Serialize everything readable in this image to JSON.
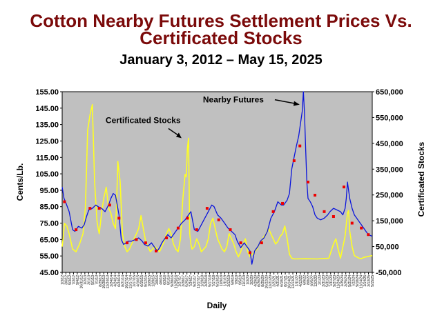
{
  "title_line1": "Cotton Nearby Futures Settlement Prices Vs.",
  "title_line2": "Certificated Stocks",
  "subtitle": "January 3, 2012 – May 15, 2025",
  "colors": {
    "plot_bg": "#c0c0c0",
    "futures": "#0a14dc",
    "stocks": "#ffff22",
    "settle_marker": "#ee0000",
    "title": "#7b0a0a"
  },
  "chart_data": {
    "type": "line",
    "xlabel": "Daily",
    "ylabel_left": "Cents/Lb.",
    "ylabel_right": "Certificated Stocks",
    "ylim_left": [
      45,
      155
    ],
    "ylim_right": [
      -50000,
      650000
    ],
    "left_ticks": [
      "45.00",
      "55.00",
      "65.00",
      "75.00",
      "85.00",
      "95.00",
      "105.00",
      "115.00",
      "125.00",
      "135.00",
      "145.00",
      "155.00"
    ],
    "right_ticks": [
      "-50,000",
      "50,000",
      "150,000",
      "250,000",
      "350,000",
      "450,000",
      "550,000",
      "650,000"
    ],
    "right_tick_values": [
      -50000,
      50000,
      150000,
      250000,
      350000,
      450000,
      550000,
      650000
    ],
    "x_ticks": [
      "1/3/12",
      "3/6/12",
      "5/3/12",
      "7/3/12",
      "9/4/12",
      "10/31/12",
      "1/2/13",
      "3/1/13",
      "5/1/13",
      "7/1/13",
      "8/29/13",
      "10/28/13",
      "12/24/13",
      "2/24/14",
      "4/24/14",
      "6/24/14",
      "8/21/14",
      "10/17/14",
      "12/17/14",
      "2/17/15",
      "4/16/15",
      "6/15/15",
      "8/12/15",
      "10/9/15",
      "12/9/15",
      "2/8/16",
      "4/6/16",
      "6/3/16",
      "8/1/16",
      "9/28/16",
      "11/25/16",
      "1/27/17",
      "3/28/17",
      "5/25/17",
      "7/24/17",
      "9/21/17",
      "11/17/17",
      "1/19/18",
      "3/20/18",
      "5/17/18",
      "7/17/18",
      "9/13/18",
      "11/9/18",
      "1/11/19",
      "3/12/19",
      "5/9/19",
      "7/9/19",
      "9/5/19",
      "11/1/19",
      "1/3/20",
      "3/2/20",
      "4/29/20",
      "6/26/20",
      "8/25/20",
      "10/22/20",
      "12/21/20",
      "2/22/21",
      "4/21/21",
      "6/18/21",
      "8/17/21",
      "10/14/21",
      "12/13/21",
      "2/11/22",
      "4/12/22",
      "6/9/22",
      "8/8/22",
      "10/5/22",
      "12/2/22",
      "2/1/23",
      "3/31/23",
      "5/31/23",
      "7/31/23",
      "9/27/23",
      "11/24/23",
      "1/25/24",
      "3/25/24",
      "5/21/24",
      "7/22/24",
      "9/18/24",
      "11/14/24",
      "1/14/25",
      "3/13/25",
      "5/15/25"
    ],
    "x_range": [
      2012.0,
      2025.37
    ],
    "annotations": [
      {
        "text": "Nearby Futures",
        "x": 2022.3,
        "y": 148
      },
      {
        "text": "Certificated Stocks",
        "x": 2017.0,
        "y": 470000
      }
    ],
    "series": [
      {
        "name": "Nearby Futures",
        "axis": "left",
        "x": [
          2012.0,
          2012.08,
          2012.17,
          2012.3,
          2012.45,
          2012.55,
          2012.7,
          2012.85,
          2012.95,
          2013.05,
          2013.15,
          2013.3,
          2013.45,
          2013.55,
          2013.7,
          2013.85,
          2014.0,
          2014.1,
          2014.2,
          2014.3,
          2014.45,
          2014.55,
          2014.65,
          2014.75,
          2014.85,
          2015.0,
          2015.15,
          2015.3,
          2015.45,
          2015.55,
          2015.7,
          2015.85,
          2016.0,
          2016.1,
          2016.2,
          2016.3,
          2016.45,
          2016.55,
          2016.7,
          2016.85,
          2017.0,
          2017.15,
          2017.3,
          2017.45,
          2017.55,
          2017.7,
          2017.85,
          2018.0,
          2018.15,
          2018.3,
          2018.45,
          2018.55,
          2018.7,
          2018.85,
          2019.0,
          2019.15,
          2019.3,
          2019.45,
          2019.55,
          2019.7,
          2019.85,
          2020.0,
          2020.1,
          2020.18,
          2020.25,
          2020.3,
          2020.45,
          2020.55,
          2020.7,
          2020.85,
          2021.0,
          2021.15,
          2021.3,
          2021.45,
          2021.55,
          2021.7,
          2021.8,
          2021.9,
          2022.0,
          2022.1,
          2022.2,
          2022.3,
          2022.35,
          2022.4,
          2022.45,
          2022.5,
          2022.55,
          2022.6,
          2022.7,
          2022.8,
          2022.9,
          2023.0,
          2023.15,
          2023.3,
          2023.45,
          2023.55,
          2023.7,
          2023.85,
          2024.0,
          2024.1,
          2024.2,
          2024.25,
          2024.3,
          2024.4,
          2024.5,
          2024.6,
          2024.7,
          2024.8,
          2024.9,
          2025.0,
          2025.1,
          2025.2,
          2025.37
        ],
        "y": [
          97,
          90,
          87,
          82,
          71,
          70,
          73,
          72,
          74,
          79,
          83,
          84,
          86,
          85,
          84,
          82,
          86,
          90,
          93,
          92,
          80,
          65,
          62,
          63,
          64,
          64,
          65,
          66,
          64,
          62,
          61,
          63,
          60,
          58,
          60,
          63,
          66,
          68,
          66,
          69,
          72,
          75,
          77,
          80,
          82,
          71,
          70,
          74,
          78,
          82,
          86,
          85,
          80,
          78,
          75,
          72,
          70,
          68,
          64,
          60,
          63,
          60,
          58,
          50,
          55,
          58,
          61,
          64,
          66,
          70,
          78,
          82,
          88,
          86,
          86,
          89,
          93,
          108,
          115,
          122,
          128,
          138,
          143,
          155,
          142,
          120,
          100,
          90,
          88,
          85,
          80,
          78,
          77,
          78,
          80,
          82,
          84,
          83,
          82,
          80,
          84,
          90,
          100,
          90,
          84,
          80,
          78,
          76,
          74,
          72,
          70,
          68,
          67
        ],
        "markers": [
          [
            2012.1,
            88
          ],
          [
            2012.6,
            71
          ],
          [
            2013.2,
            84
          ],
          [
            2013.6,
            84
          ],
          [
            2014.05,
            86
          ],
          [
            2014.45,
            78
          ],
          [
            2014.8,
            63
          ],
          [
            2015.2,
            65
          ],
          [
            2015.6,
            63
          ],
          [
            2016.05,
            58
          ],
          [
            2016.5,
            66
          ],
          [
            2017.0,
            72
          ],
          [
            2017.4,
            78
          ],
          [
            2017.8,
            71
          ],
          [
            2018.25,
            84
          ],
          [
            2018.75,
            77
          ],
          [
            2019.25,
            71
          ],
          [
            2019.7,
            63
          ],
          [
            2020.1,
            57
          ],
          [
            2020.6,
            63
          ],
          [
            2021.1,
            82
          ],
          [
            2021.5,
            87
          ],
          [
            2022.0,
            113
          ],
          [
            2022.25,
            122
          ],
          [
            2022.6,
            100
          ],
          [
            2022.9,
            92
          ],
          [
            2023.3,
            82
          ],
          [
            2023.7,
            79
          ],
          [
            2024.15,
            97
          ],
          [
            2024.5,
            75
          ],
          [
            2024.9,
            72
          ],
          [
            2025.2,
            68
          ]
        ]
      },
      {
        "name": "Certificated Stocks",
        "axis": "right",
        "x": [
          2012.0,
          2012.05,
          2012.1,
          2012.2,
          2012.3,
          2012.45,
          2012.6,
          2012.75,
          2012.9,
          2013.0,
          2013.05,
          2013.1,
          2013.2,
          2013.3,
          2013.4,
          2013.5,
          2013.55,
          2013.6,
          2013.7,
          2013.8,
          2013.9,
          2014.0,
          2014.1,
          2014.2,
          2014.3,
          2014.35,
          2014.4,
          2014.5,
          2014.6,
          2014.7,
          2014.8,
          2014.9,
          2015.0,
          2015.1,
          2015.2,
          2015.3,
          2015.4,
          2015.5,
          2015.6,
          2015.7,
          2015.8,
          2015.9,
          2016.0,
          2016.1,
          2016.2,
          2016.3,
          2016.4,
          2016.5,
          2016.6,
          2016.7,
          2016.8,
          2016.9,
          2017.0,
          2017.1,
          2017.2,
          2017.3,
          2017.35,
          2017.4,
          2017.45,
          2017.5,
          2017.55,
          2017.6,
          2017.7,
          2017.8,
          2017.9,
          2018.0,
          2018.1,
          2018.2,
          2018.3,
          2018.4,
          2018.5,
          2018.6,
          2018.7,
          2018.8,
          2018.9,
          2019.0,
          2019.1,
          2019.2,
          2019.3,
          2019.4,
          2019.5,
          2019.6,
          2019.7,
          2019.8,
          2019.9,
          2020.0,
          2020.1,
          2020.2,
          2020.3,
          2020.4,
          2020.5,
          2020.6,
          2020.7,
          2020.8,
          2020.9,
          2021.0,
          2021.1,
          2021.2,
          2021.3,
          2021.4,
          2021.5,
          2021.6,
          2021.7,
          2021.8,
          2021.9,
          2022.0,
          2022.5,
          2023.0,
          2023.5,
          2023.7,
          2023.8,
          2023.9,
          2024.0,
          2024.2,
          2024.3,
          2024.35,
          2024.4,
          2024.5,
          2024.6,
          2024.7,
          2024.8,
          2024.9,
          2025.0,
          2025.2,
          2025.37
        ],
        "y": [
          50000,
          90000,
          140000,
          130000,
          100000,
          40000,
          30000,
          60000,
          100000,
          200000,
          350000,
          500000,
          560000,
          600000,
          300000,
          150000,
          120000,
          100000,
          180000,
          240000,
          280000,
          200000,
          180000,
          140000,
          120000,
          220000,
          380000,
          300000,
          100000,
          50000,
          30000,
          40000,
          60000,
          80000,
          100000,
          120000,
          170000,
          120000,
          70000,
          50000,
          30000,
          40000,
          50000,
          40000,
          30000,
          50000,
          70000,
          100000,
          120000,
          100000,
          60000,
          40000,
          30000,
          80000,
          230000,
          330000,
          320000,
          430000,
          470000,
          100000,
          60000,
          40000,
          50000,
          80000,
          60000,
          30000,
          40000,
          50000,
          80000,
          140000,
          160000,
          120000,
          80000,
          60000,
          40000,
          30000,
          50000,
          100000,
          80000,
          60000,
          30000,
          10000,
          30000,
          60000,
          80000,
          30000,
          10000,
          20000,
          30000,
          40000,
          60000,
          70000,
          90000,
          100000,
          120000,
          100000,
          80000,
          60000,
          70000,
          90000,
          100000,
          130000,
          80000,
          20000,
          5000,
          2000,
          3000,
          2000,
          5000,
          60000,
          80000,
          40000,
          5000,
          90000,
          180000,
          190000,
          110000,
          50000,
          15000,
          10000,
          5000,
          3000,
          8000,
          12000,
          15000
        ]
      }
    ]
  }
}
